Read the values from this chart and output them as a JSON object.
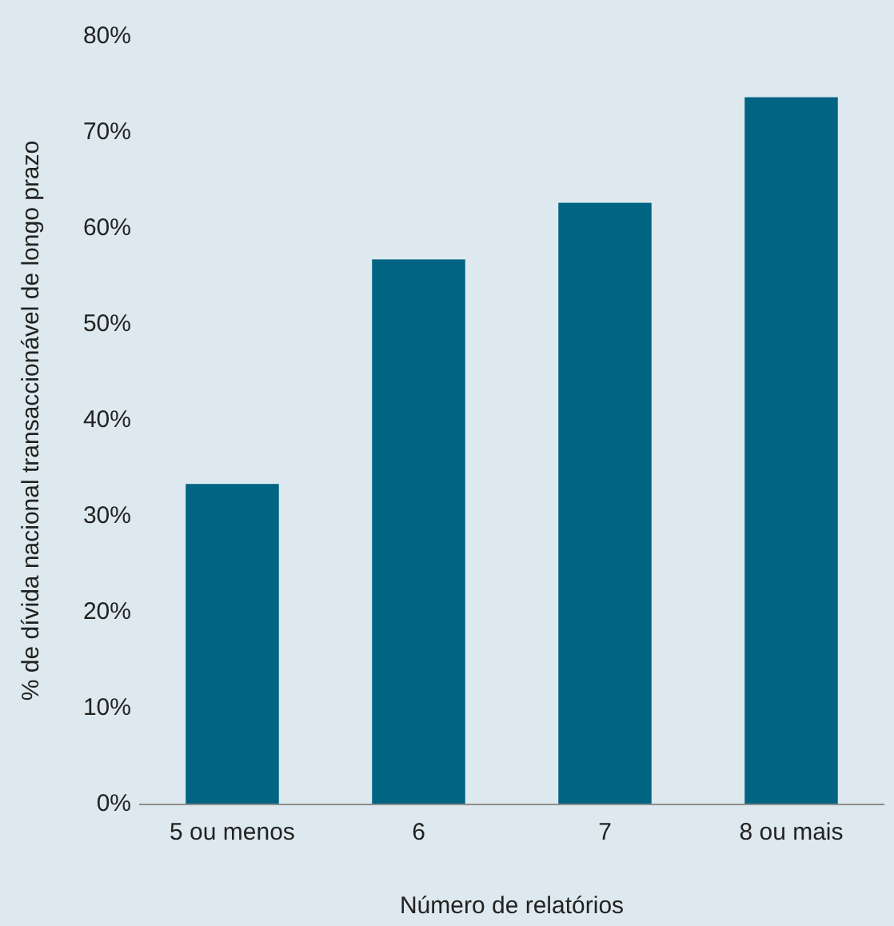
{
  "chart_data": {
    "type": "bar",
    "xlabel": "Número de relatórios",
    "ylabel": "% de dívida nacional transaccionável de longo prazo",
    "categories": [
      "5 ou menos",
      "6",
      "7",
      "8 ou mais"
    ],
    "values": [
      33.4,
      56.8,
      62.7,
      73.7
    ],
    "color": "#006482",
    "ylim": [
      0,
      80
    ],
    "yticks": [
      {
        "value": 0,
        "label": "0%"
      },
      {
        "value": 10,
        "label": "10%"
      },
      {
        "value": 20,
        "label": "20%"
      },
      {
        "value": 30,
        "label": "30%"
      },
      {
        "value": 40,
        "label": "40%"
      },
      {
        "value": 50,
        "label": "50%"
      },
      {
        "value": 60,
        "label": "60%"
      },
      {
        "value": 70,
        "label": "70%"
      },
      {
        "value": 80,
        "label": "80%"
      }
    ],
    "grid": false
  }
}
